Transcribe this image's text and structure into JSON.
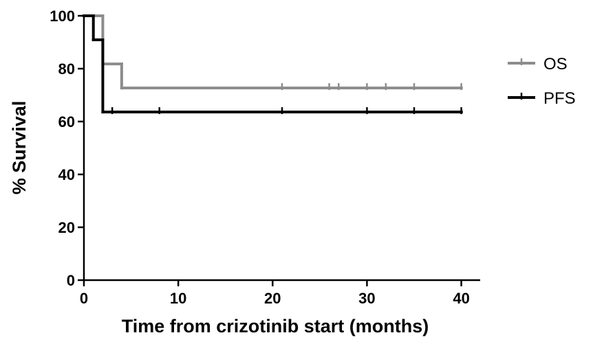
{
  "chart_data": {
    "type": "step",
    "x_label": "Time from crizotinib start (months)",
    "y_label": "% Survival",
    "xlim": [
      0,
      42
    ],
    "ylim": [
      0,
      100
    ],
    "xticks": [
      0,
      10,
      20,
      30,
      40
    ],
    "yticks": [
      0,
      20,
      40,
      60,
      80,
      100
    ],
    "series": [
      {
        "name": "OS",
        "color": "#8c8c8c",
        "x": [
          0,
          2,
          4,
          40
        ],
        "values": [
          100,
          81.8,
          72.7,
          72.7
        ],
        "censored": [
          21,
          26,
          27,
          30,
          32,
          35,
          40
        ]
      },
      {
        "name": "PFS",
        "color": "#000000",
        "x": [
          0,
          1,
          2,
          40
        ],
        "values": [
          100,
          90.9,
          63.6,
          63.6
        ],
        "censored": [
          3,
          8,
          21,
          30,
          35,
          40
        ]
      }
    ]
  }
}
